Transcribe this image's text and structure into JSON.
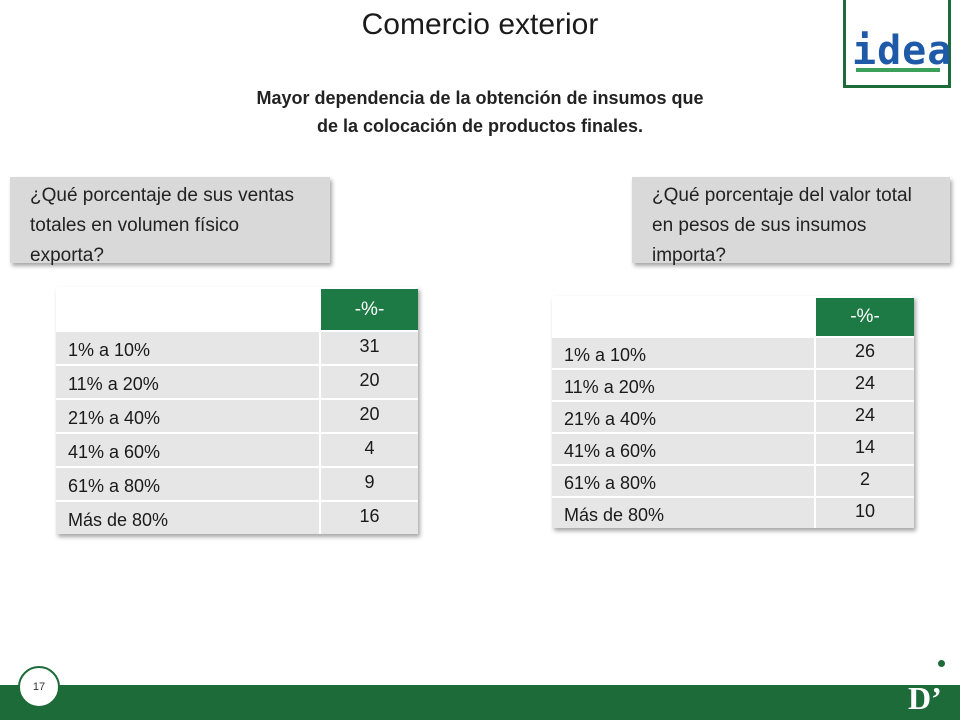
{
  "header": {
    "title": "Comercio exterior",
    "subtitle_line1": "Mayor dependencia de la obtención de insumos que",
    "subtitle_line2": "de la colocación de productos finales.",
    "logo_text": "idea"
  },
  "left_panel": {
    "question": "¿Qué porcentaje de sus ventas totales en volumen físico exporta?",
    "column_header": "-%-",
    "rows": [
      {
        "label": "1% a 10%",
        "value": "31"
      },
      {
        "label": "11% a 20%",
        "value": "20"
      },
      {
        "label": "21% a 40%",
        "value": "20"
      },
      {
        "label": "41% a 60%",
        "value": "4"
      },
      {
        "label": "61% a 80%",
        "value": "9"
      },
      {
        "label": "Más de 80%",
        "value": "16"
      }
    ]
  },
  "right_panel": {
    "question": "¿Qué porcentaje del valor total en pesos de sus insumos importa?",
    "column_header": "-%-",
    "rows": [
      {
        "label": "1% a 10%",
        "value": "26"
      },
      {
        "label": "11% a 20%",
        "value": "24"
      },
      {
        "label": "21% a 40%",
        "value": "24"
      },
      {
        "label": "41% a 60%",
        "value": "14"
      },
      {
        "label": "61% a 80%",
        "value": "2"
      },
      {
        "label": "Más de 80%",
        "value": "10"
      }
    ]
  },
  "footer": {
    "page_number": "17",
    "brand_mark": "D’"
  },
  "colors": {
    "accent_green": "#1d7a45",
    "footer_green": "#1e6b3a",
    "logo_blue": "#1e5aa8",
    "question_bg": "#d9d9d9",
    "row_bg": "#e6e6e6"
  }
}
